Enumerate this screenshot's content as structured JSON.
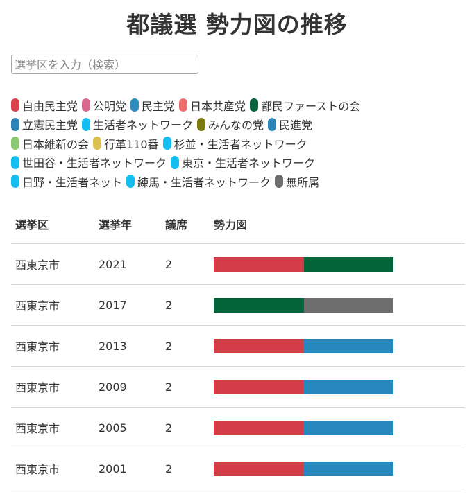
{
  "page": {
    "title": "都議選 勢力図の推移"
  },
  "search": {
    "placeholder": "選挙区を入力（検索）",
    "value": ""
  },
  "legend": {
    "rows": [
      [
        {
          "label": "自由民主党",
          "color": "#d9414b"
        },
        {
          "label": "公明党",
          "color": "#d9678f"
        },
        {
          "label": "民主党",
          "color": "#2c8bbf"
        },
        {
          "label": "日本共産党",
          "color": "#ef6f6f"
        },
        {
          "label": "都民ファーストの会",
          "color": "#08633b"
        }
      ],
      [
        {
          "label": "立憲民主党",
          "color": "#2c85b8"
        },
        {
          "label": "生活者ネットワーク",
          "color": "#16bdf0"
        },
        {
          "label": "みんなの党",
          "color": "#7a7a10"
        },
        {
          "label": "民進党",
          "color": "#2c85b8"
        }
      ],
      [
        {
          "label": "日本維新の会",
          "color": "#8cc870"
        },
        {
          "label": "行革110番",
          "color": "#dcbf50"
        },
        {
          "label": "杉並・生活者ネットワーク",
          "color": "#16bdf0"
        }
      ],
      [
        {
          "label": "世田谷・生活者ネットワーク",
          "color": "#16bdf0"
        },
        {
          "label": "東京・生活者ネットワーク",
          "color": "#16bdf0"
        }
      ],
      [
        {
          "label": "日野・生活者ネット",
          "color": "#16bdf0"
        },
        {
          "label": "練馬・生活者ネットワーク",
          "color": "#16bdf0"
        },
        {
          "label": "無所属",
          "color": "#6e6e6e"
        }
      ]
    ]
  },
  "table": {
    "headers": {
      "district": "選挙区",
      "year": "選挙年",
      "seats": "議席",
      "power": "勢力図"
    },
    "rows": [
      {
        "district": "西東京市",
        "year": "2021",
        "seats": "2",
        "segments": [
          "#d43d47",
          "#04643a"
        ]
      },
      {
        "district": "西東京市",
        "year": "2017",
        "seats": "2",
        "segments": [
          "#04643a",
          "#6e6e6e"
        ]
      },
      {
        "district": "西東京市",
        "year": "2013",
        "seats": "2",
        "segments": [
          "#d43d47",
          "#2688bd"
        ]
      },
      {
        "district": "西東京市",
        "year": "2009",
        "seats": "2",
        "segments": [
          "#d43d47",
          "#2688bd"
        ]
      },
      {
        "district": "西東京市",
        "year": "2005",
        "seats": "2",
        "segments": [
          "#d43d47",
          "#2688bd"
        ]
      },
      {
        "district": "西東京市",
        "year": "2001",
        "seats": "2",
        "segments": [
          "#d43d47",
          "#2688bd"
        ]
      }
    ]
  }
}
